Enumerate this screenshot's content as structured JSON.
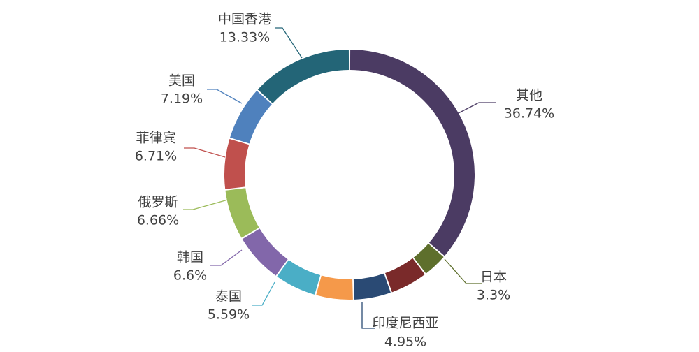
{
  "chart_data": {
    "type": "pie",
    "title": "",
    "segments": [
      {
        "name": "其他",
        "value": 36.74,
        "label": "36.74%",
        "color": "#4b3b63"
      },
      {
        "name": "日本",
        "value": 3.3,
        "label": "3.3%",
        "color": "#5e6f2c"
      },
      {
        "name": "",
        "value": 5.0,
        "label": "",
        "color": "#7a2a2a"
      },
      {
        "name": "印度尼西亚",
        "value": 4.95,
        "label": "4.95%",
        "color": "#2a4a74"
      },
      {
        "name": "",
        "value": 4.98,
        "label": "",
        "color": "#f5994a"
      },
      {
        "name": "泰国",
        "value": 5.59,
        "label": "5.59%",
        "color": "#4aaec6"
      },
      {
        "name": "韩国",
        "value": 6.6,
        "label": "6.6%",
        "color": "#8267aa"
      },
      {
        "name": "俄罗斯",
        "value": 6.66,
        "label": "6.66%",
        "color": "#9bbb59"
      },
      {
        "name": "菲律宾",
        "value": 6.71,
        "label": "6.71%",
        "color": "#c0504d"
      },
      {
        "name": "美国",
        "value": 7.19,
        "label": "7.19%",
        "color": "#4f81bd"
      },
      {
        "name": "中国香港",
        "value": 13.33,
        "label": "13.33%",
        "color": "#236577"
      }
    ],
    "start_angle_deg": 0,
    "direction": "clockwise",
    "donut": true
  }
}
